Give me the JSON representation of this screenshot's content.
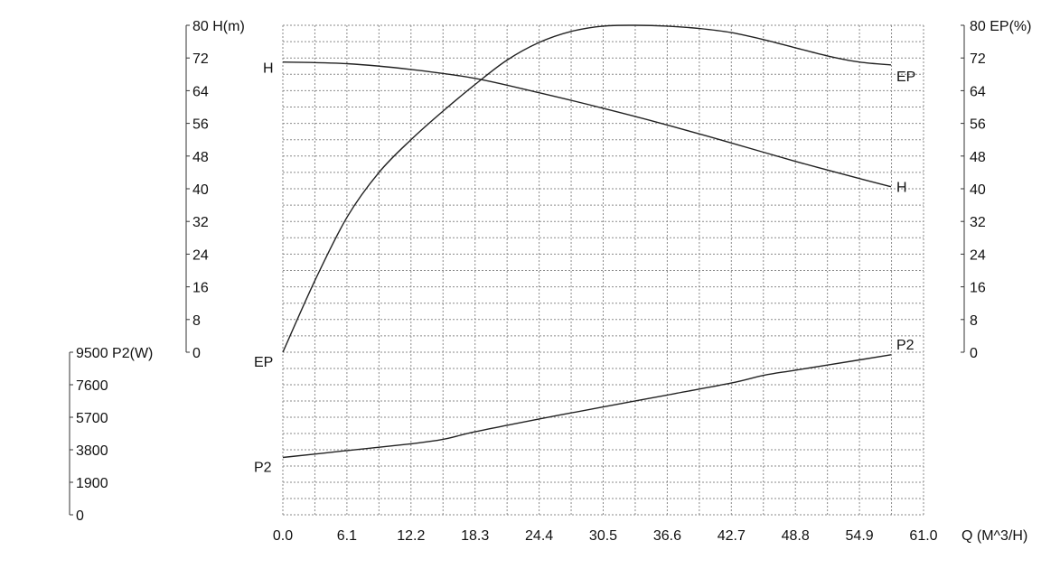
{
  "chart_data": {
    "type": "line",
    "grid": true,
    "x_axis": {
      "label": "Q (M^3/H)",
      "range": [
        0,
        61.0
      ],
      "ticks": [
        0.0,
        6.1,
        12.2,
        18.3,
        24.4,
        30.5,
        36.6,
        42.7,
        48.8,
        54.9,
        61.0
      ],
      "tick_labels": [
        "0.0",
        "6.1",
        "12.2",
        "18.3",
        "24.4",
        "30.5",
        "36.6",
        "42.7",
        "48.8",
        "54.9",
        "61.0"
      ]
    },
    "y_axes": [
      {
        "id": "head",
        "side": "left",
        "label": "H(m)",
        "range": [
          0,
          80
        ],
        "ticks": [
          0,
          8,
          16,
          24,
          32,
          40,
          48,
          56,
          64,
          72,
          80
        ],
        "tick_labels": [
          "0",
          "8",
          "16",
          "24",
          "32",
          "40",
          "48",
          "56",
          "64",
          "72",
          "80"
        ]
      },
      {
        "id": "efficiency",
        "side": "right",
        "label": "EP(%)",
        "range": [
          0,
          80
        ],
        "ticks": [
          0,
          8,
          16,
          24,
          32,
          40,
          48,
          56,
          64,
          72,
          80
        ],
        "tick_labels": [
          "0",
          "8",
          "16",
          "24",
          "32",
          "40",
          "48",
          "56",
          "64",
          "72",
          "80"
        ]
      },
      {
        "id": "power",
        "side": "left-lower",
        "label": "P2(W)",
        "range": [
          0,
          9500
        ],
        "ticks": [
          0,
          1900,
          3800,
          5700,
          7600,
          9500
        ],
        "tick_labels": [
          "0",
          "1900",
          "3800",
          "5700",
          "7600",
          "9500"
        ]
      }
    ],
    "series": [
      {
        "name": "H",
        "axis": "head",
        "points": [
          [
            0,
            71
          ],
          [
            6.1,
            70.6
          ],
          [
            12.2,
            69.2
          ],
          [
            18.3,
            67
          ],
          [
            24.4,
            63.5
          ],
          [
            30.5,
            59.7
          ],
          [
            36.6,
            55.6
          ],
          [
            42.7,
            51.2
          ],
          [
            48.8,
            46.7
          ],
          [
            54.9,
            42.5
          ],
          [
            57.9,
            40.5
          ]
        ]
      },
      {
        "name": "EP",
        "axis": "efficiency",
        "points": [
          [
            0,
            0
          ],
          [
            3.05,
            17.5
          ],
          [
            6.1,
            33
          ],
          [
            9.15,
            44
          ],
          [
            12.2,
            52
          ],
          [
            15.25,
            59
          ],
          [
            18.3,
            65.5
          ],
          [
            21.35,
            71.5
          ],
          [
            24.4,
            75.8
          ],
          [
            27.45,
            78.5
          ],
          [
            30.5,
            79.8
          ],
          [
            33.55,
            80
          ],
          [
            36.6,
            79.8
          ],
          [
            39.65,
            79.2
          ],
          [
            42.7,
            78.2
          ],
          [
            45.75,
            76.5
          ],
          [
            48.8,
            74.5
          ],
          [
            51.85,
            72.5
          ],
          [
            54.9,
            71
          ],
          [
            57.9,
            70.3
          ]
        ]
      },
      {
        "name": "P2",
        "axis": "power",
        "points": [
          [
            0,
            3350
          ],
          [
            6.1,
            3750
          ],
          [
            12.2,
            4150
          ],
          [
            15.2,
            4400
          ],
          [
            18.3,
            4850
          ],
          [
            24.4,
            5600
          ],
          [
            30.5,
            6300
          ],
          [
            36.6,
            7000
          ],
          [
            42.7,
            7700
          ],
          [
            45.8,
            8150
          ],
          [
            48.8,
            8450
          ],
          [
            54.9,
            9050
          ],
          [
            57.9,
            9350
          ]
        ]
      }
    ],
    "curve_labels": {
      "H": [
        "H",
        "H"
      ],
      "EP": [
        "EP",
        "EP"
      ],
      "P2": [
        "P2",
        "P2"
      ]
    }
  }
}
